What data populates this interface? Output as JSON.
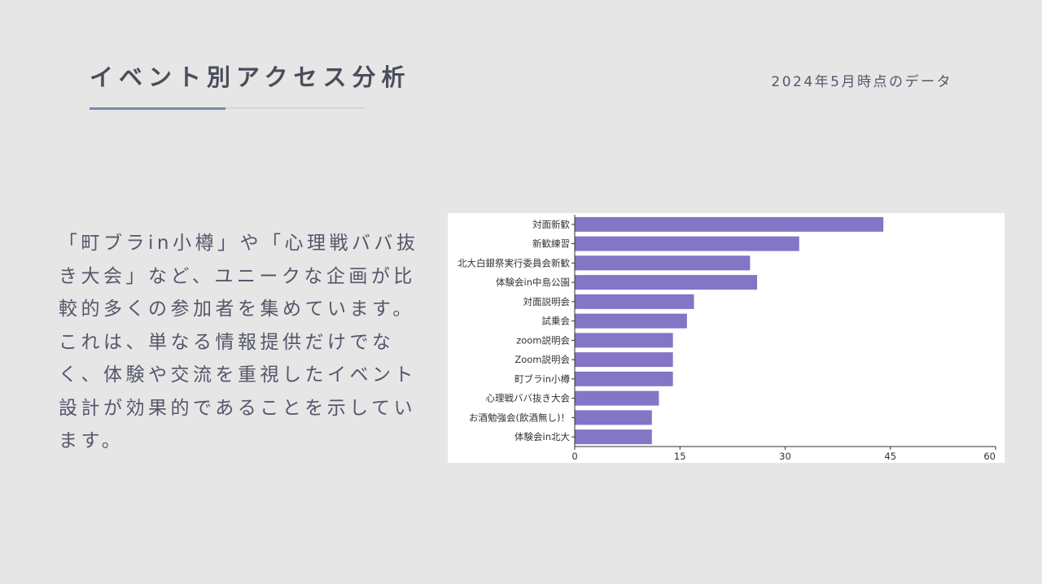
{
  "header": {
    "title": "イベント別アクセス分析",
    "date_note": "2024年5月時点のデータ"
  },
  "description": "「町ブラin小樽」や「心理戦ババ抜き大会」など、ユニークな企画が比較的多くの参加者を集めています。これは、単なる情報提供だけでなく、体験や交流を重視したイベント設計が効果的であることを示しています。",
  "colors": {
    "bar": "#8475c6",
    "axis": "#333333",
    "accent_line": "#7b87b0"
  },
  "chart_data": {
    "type": "bar",
    "orientation": "horizontal",
    "categories": [
      "対面新歓",
      "新歓練習",
      "北大白銀祭実行委員会新歓",
      "体験会in中島公園",
      "対面説明会",
      "試乗会",
      "zoom説明会",
      "Zoom説明会",
      "町ブラin小樽",
      "心理戦ババ抜き大会",
      "お酒勉強会(飲酒無し)！",
      "体験会in北大"
    ],
    "values": [
      44,
      32,
      25,
      26,
      17,
      16,
      14,
      14,
      14,
      12,
      11,
      11
    ],
    "xlim": [
      0,
      60
    ],
    "xticks": [
      "0",
      "15",
      "30",
      "45",
      "60"
    ],
    "title": "",
    "xlabel": "",
    "ylabel": "",
    "grid": false,
    "legend": "none"
  }
}
